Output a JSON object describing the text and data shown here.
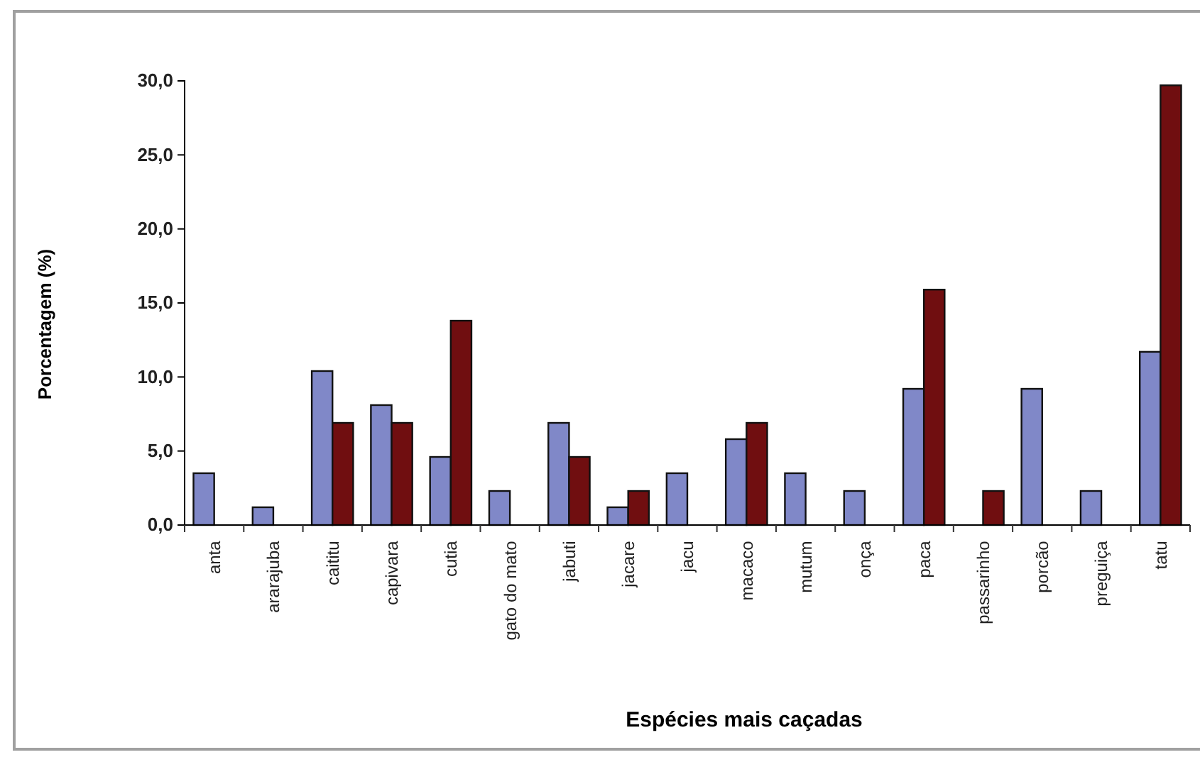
{
  "chart_data": {
    "type": "bar",
    "xlabel": "Espécies mais caçadas",
    "ylabel": "Porcentagem (%)",
    "categories": [
      "anta",
      "ararajuba",
      "caititu",
      "capivara",
      "cutia",
      "gato do mato",
      "jabuti",
      "jacare",
      "jacu",
      "macaco",
      "mutum",
      "onça",
      "paca",
      "passarinho",
      "porcão",
      "preguiça",
      "tatu"
    ],
    "series": [
      {
        "color": "#8088c8",
        "values": [
          3.5,
          1.2,
          10.4,
          8.1,
          4.6,
          2.3,
          6.9,
          1.2,
          3.5,
          5.8,
          3.5,
          2.3,
          9.2,
          null,
          9.2,
          2.3,
          11.7
        ]
      },
      {
        "color": "#700e10",
        "values": [
          null,
          null,
          6.9,
          6.9,
          13.8,
          null,
          4.6,
          2.3,
          null,
          6.9,
          null,
          null,
          15.9,
          2.3,
          null,
          null,
          29.7
        ]
      }
    ],
    "ylim": [
      0,
      30
    ],
    "yticks": [
      {
        "value": 0,
        "label": "0,0"
      },
      {
        "value": 5,
        "label": "5,0"
      },
      {
        "value": 10,
        "label": "10,0"
      },
      {
        "value": 15,
        "label": "15,0"
      },
      {
        "value": 20,
        "label": "20,0"
      },
      {
        "value": 25,
        "label": "25,0"
      },
      {
        "value": 30,
        "label": "30,0"
      }
    ]
  }
}
